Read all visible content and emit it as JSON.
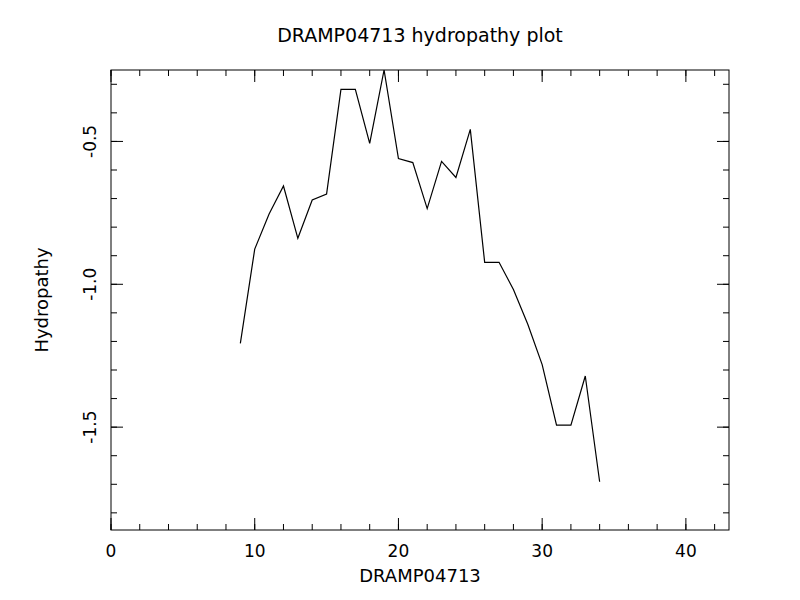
{
  "chart_data": {
    "type": "line",
    "title": "DRAMP04713 hydropathy plot",
    "x_label": "DRAMP04713",
    "y_label": "Hydropathy",
    "x": [
      9,
      10,
      11,
      12,
      13,
      14,
      15,
      16,
      17,
      18,
      19,
      20,
      21,
      22,
      23,
      24,
      25,
      26,
      27,
      28,
      29,
      30,
      31,
      32,
      33,
      34
    ],
    "values": [
      -1.207,
      -0.877,
      -0.754,
      -0.656,
      -0.839,
      -0.705,
      -0.684,
      -0.318,
      -0.318,
      -0.507,
      -0.25,
      -0.56,
      -0.574,
      -0.735,
      -0.57,
      -0.626,
      -0.458,
      -0.923,
      -0.923,
      -1.018,
      -1.14,
      -1.281,
      -1.493,
      -1.493,
      -1.321,
      -1.691
    ],
    "color": "#000000",
    "xlim": [
      0,
      43
    ],
    "xticks": [
      0,
      10,
      20,
      30,
      40
    ],
    "ylim": [
      -1.86,
      -0.25
    ],
    "yticks": [
      -0.5,
      {
        "value": -1,
        "label": "-1.0"
      },
      -1.5
    ],
    "grid": false
  }
}
